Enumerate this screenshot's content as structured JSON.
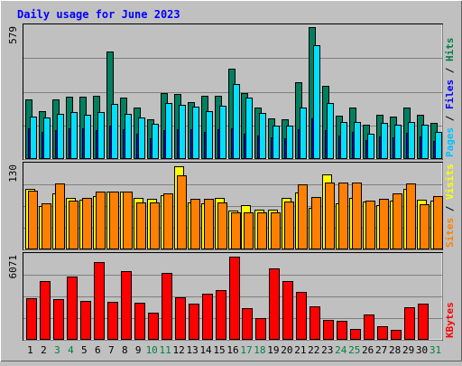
{
  "chart_data": [
    {
      "type": "bar",
      "title": "Daily usage for June 2023",
      "ymax_label": "579",
      "right_labels": [
        {
          "text": "Pages",
          "color": "#00c0ff"
        },
        {
          "text": "Files",
          "color": "#0000ff"
        },
        {
          "text": "Hits",
          "color": "#008040"
        }
      ],
      "separator": "/",
      "categories": [
        "1",
        "2",
        "3",
        "4",
        "5",
        "6",
        "7",
        "8",
        "9",
        "10",
        "11",
        "12",
        "13",
        "14",
        "15",
        "16",
        "17",
        "18",
        "19",
        "20",
        "21",
        "22",
        "23",
        "24",
        "25",
        "26",
        "27",
        "28",
        "29",
        "30",
        "31"
      ],
      "weekend_days": [
        "3",
        "4",
        "10",
        "11",
        "17",
        "18",
        "24",
        "25",
        "31"
      ],
      "ylim": [
        0,
        579
      ],
      "series": [
        {
          "name": "Hits",
          "color": "#008060",
          "values": [
            263,
            212,
            263,
            272,
            272,
            279,
            473,
            271,
            225,
            176,
            290,
            285,
            249,
            279,
            279,
            397,
            290,
            225,
            178,
            176,
            338,
            578,
            320,
            190,
            225,
            151,
            195,
            188,
            225,
            193,
            159
          ]
        },
        {
          "name": "Files",
          "color": "#0000ff",
          "values": [
            135,
            120,
            125,
            135,
            135,
            125,
            145,
            130,
            110,
            90,
            125,
            130,
            130,
            120,
            130,
            135,
            110,
            105,
            95,
            90,
            130,
            180,
            125,
            105,
            120,
            85,
            100,
            95,
            115,
            100,
            80
          ]
        },
        {
          "name": "Pages",
          "color": "#00e0ff",
          "values": [
            188,
            182,
            200,
            205,
            194,
            207,
            243,
            200,
            184,
            155,
            245,
            238,
            229,
            211,
            234,
            331,
            270,
            202,
            148,
            145,
            228,
            501,
            246,
            163,
            163,
            111,
            160,
            151,
            163,
            151,
            119
          ]
        }
      ]
    },
    {
      "type": "bar",
      "ymax_label": "130",
      "right_labels": [
        {
          "text": "Sites",
          "color": "#ff8000"
        },
        {
          "text": "Visits",
          "color": "#ffff00"
        }
      ],
      "separator": "/",
      "ylim": [
        0,
        130
      ],
      "series": [
        {
          "name": "Visits",
          "color": "#ffff00",
          "values": [
            94,
            67,
            86,
            80,
            77,
            83,
            90,
            90,
            79,
            78,
            84,
            128,
            73,
            71,
            79,
            60,
            69,
            61,
            61,
            79,
            88,
            64,
            116,
            71,
            79,
            74,
            69,
            75,
            94,
            77,
            75
          ]
        },
        {
          "name": "Sites",
          "color": "#ff8000",
          "values": [
            91,
            71,
            102,
            75,
            79,
            89,
            90,
            90,
            73,
            73,
            86,
            114,
            78,
            78,
            72,
            57,
            57,
            58,
            58,
            74,
            101,
            81,
            103,
            103,
            103,
            75,
            78,
            86,
            102,
            70,
            82
          ]
        }
      ]
    },
    {
      "type": "bar",
      "ymax_label": "6071",
      "right_labels": [
        {
          "text": "KBytes",
          "color": "#ff0000"
        }
      ],
      "ylim": [
        0,
        6071
      ],
      "series": [
        {
          "name": "KBytes",
          "color": "#ff0000",
          "values": [
            2980,
            4240,
            2955,
            4580,
            2779,
            5584,
            2773,
            4972,
            2687,
            1944,
            4837,
            3045,
            2580,
            3331,
            3558,
            5990,
            2310,
            1593,
            5189,
            4250,
            3472,
            2416,
            1424,
            1378,
            754,
            1804,
            1005,
            719,
            2325,
            2624,
            0
          ]
        }
      ]
    }
  ]
}
